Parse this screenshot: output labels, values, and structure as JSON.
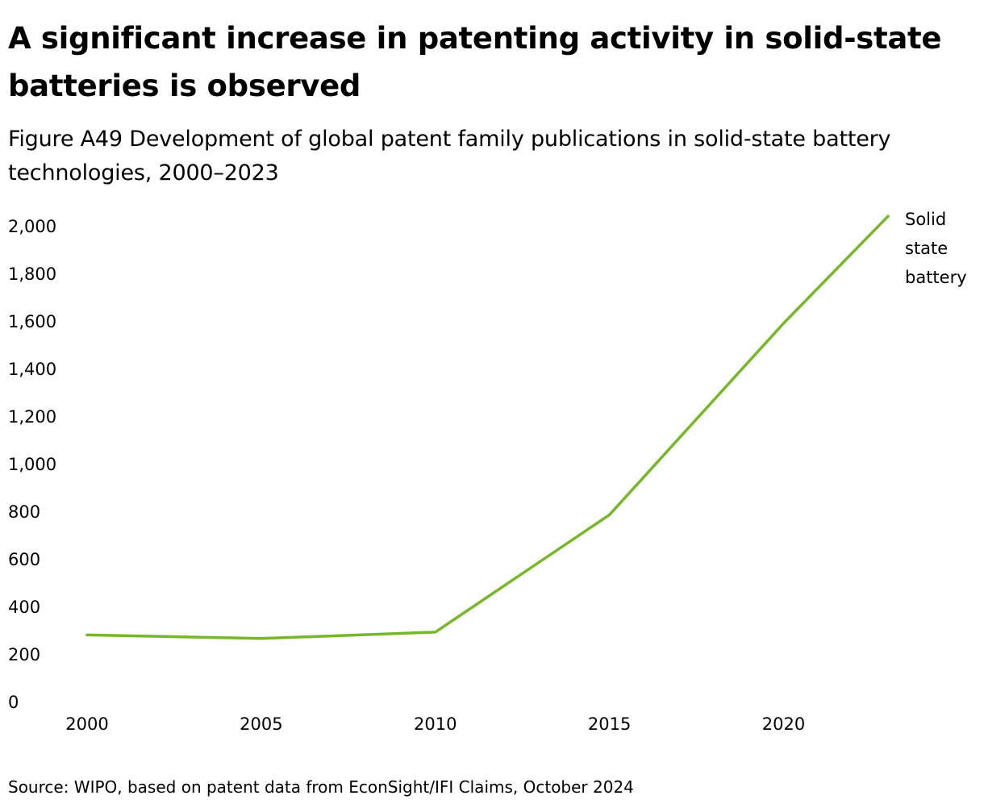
{
  "header": {
    "title": "A significant increase in patenting activity in solid-state batteries is observed",
    "subtitle": "Figure A49 Development of global patent family publications in solid-state battery technologies, 2000–2023"
  },
  "footer": {
    "source": "Source: WIPO, based on patent data from EconSight/IFI Claims, October 2024"
  },
  "chart_data": {
    "type": "line",
    "title": "",
    "xlabel": "",
    "ylabel": "",
    "xlim": [
      2000,
      2023
    ],
    "ylim": [
      0,
      2000
    ],
    "x_ticks": [
      "2000",
      "2005",
      "2010",
      "2015",
      "2020"
    ],
    "y_ticks": [
      "0",
      "200",
      "400",
      "600",
      "800",
      "1,000",
      "1,200",
      "1,400",
      "1,600",
      "1,800",
      "2,000"
    ],
    "grid": false,
    "legend": "none",
    "series": [
      {
        "name": "Solid state battery",
        "label_lines": [
          "Solid",
          "state",
          "battery"
        ],
        "color": "#76b82a",
        "x": [
          2000,
          2005,
          2010,
          2015,
          2020,
          2023
        ],
        "y": [
          280,
          265,
          292,
          785,
          1590,
          2040
        ]
      }
    ]
  }
}
